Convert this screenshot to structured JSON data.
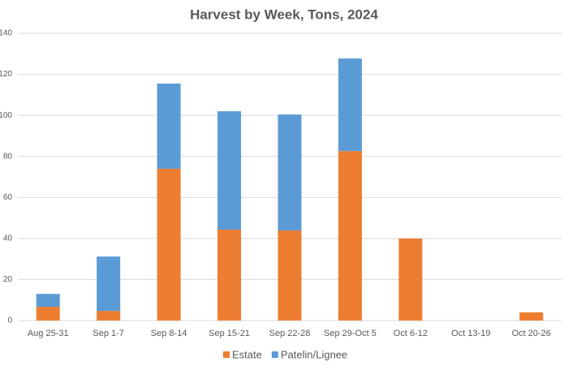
{
  "chart_data": {
    "type": "stacked-bar",
    "title": "Harvest by Week, Tons, 2024",
    "categories": [
      "Aug 25-31",
      "Sep 1-7",
      "Sep 8-14",
      "Sep 15-21",
      "Sep 22-28",
      "Sep 29-Oct 5",
      "Oct 6-12",
      "Oct 13-19",
      "Oct 20-26"
    ],
    "series": [
      {
        "name": "Estate",
        "color": "#ed7d31",
        "values": [
          6.7,
          4.7,
          74,
          44.3,
          43.9,
          82.6,
          40,
          0,
          4
        ]
      },
      {
        "name": "Patelin/Lignee",
        "color": "#5b9bd5",
        "values": [
          6.3,
          26.5,
          41.5,
          57.7,
          56.5,
          45.1,
          0,
          0,
          0
        ]
      }
    ],
    "ylim": [
      0,
      140
    ],
    "yticks": [
      0,
      20,
      40,
      60,
      80,
      100,
      120,
      140
    ],
    "grid": true,
    "legend": "bottom"
  }
}
